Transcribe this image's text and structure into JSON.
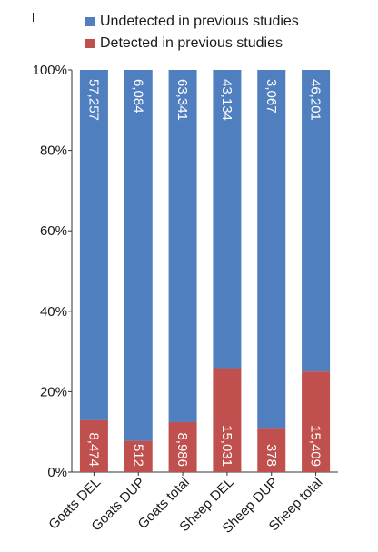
{
  "legend": {
    "undetected_label": "Undetected in previous studies",
    "detected_label": "Detected in previous studies"
  },
  "colors": {
    "undetected": "#4f7fbf",
    "detected": "#c0504d"
  },
  "chart_data": {
    "type": "bar",
    "stacked": true,
    "normalized": true,
    "categories": [
      "Goats DEL",
      "Goats DUP",
      "Goats total",
      "Sheep DEL",
      "Sheep DUP",
      "Sheep total"
    ],
    "series": [
      {
        "name": "Detected in previous studies",
        "values": [
          8474,
          512,
          8986,
          15031,
          378,
          15409
        ],
        "labels": [
          "8,474",
          "512",
          "8,986",
          "15,031",
          "378",
          "15,409"
        ]
      },
      {
        "name": "Undetected in previous studies",
        "values": [
          57257,
          6084,
          63341,
          43134,
          3067,
          46201
        ],
        "labels": [
          "57,257",
          "6,084",
          "63,341",
          "43,134",
          "3,067",
          "46,201"
        ]
      }
    ],
    "ylim": [
      0,
      100
    ],
    "yticks": [
      "0%",
      "20%",
      "40%",
      "60%",
      "80%",
      "100%"
    ],
    "grid": false,
    "legend_position": "top"
  }
}
